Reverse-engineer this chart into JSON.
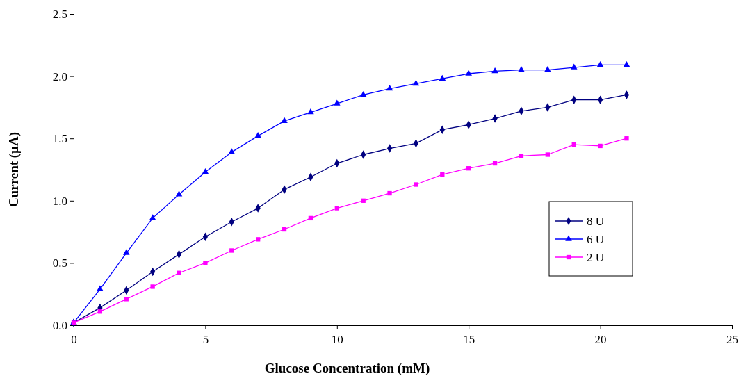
{
  "chart_data": {
    "type": "line",
    "xlabel": "Glucose Concentration (mM)",
    "ylabel": "Current (µA)",
    "x": [
      0,
      1,
      2,
      3,
      4,
      5,
      6,
      7,
      8,
      9,
      10,
      11,
      12,
      13,
      14,
      15,
      16,
      17,
      18,
      19,
      20,
      21
    ],
    "xlim": [
      0,
      25
    ],
    "xticks": [
      0,
      5,
      10,
      15,
      20,
      25
    ],
    "ylim": [
      0,
      2.5
    ],
    "yticks": [
      {
        "value": 0,
        "label": "0.0"
      },
      {
        "value": 0.5,
        "label": "0.5"
      },
      {
        "value": 1,
        "label": "1.0"
      },
      {
        "value": 1.5,
        "label": "1.5"
      },
      {
        "value": 2,
        "label": "2.0"
      },
      {
        "value": 2.5,
        "label": "2.5"
      }
    ],
    "legend": "right",
    "grid": false,
    "line_style": "solid",
    "series": [
      {
        "name": "8 U",
        "color": "#000080",
        "marker": "diamond",
        "values": [
          0.02,
          0.14,
          0.28,
          0.43,
          0.57,
          0.71,
          0.83,
          0.94,
          1.09,
          1.19,
          1.3,
          1.37,
          1.42,
          1.46,
          1.57,
          1.61,
          1.66,
          1.72,
          1.75,
          1.81,
          1.81,
          1.85
        ]
      },
      {
        "name": "6 U",
        "color": "#0000ff",
        "marker": "triangle",
        "values": [
          0.02,
          0.29,
          0.58,
          0.86,
          1.05,
          1.23,
          1.39,
          1.52,
          1.64,
          1.71,
          1.78,
          1.85,
          1.9,
          1.94,
          1.98,
          2.02,
          2.04,
          2.05,
          2.05,
          2.07,
          2.09,
          2.09
        ]
      },
      {
        "name": "2 U",
        "color": "#ff00ff",
        "marker": "square",
        "values": [
          0.02,
          0.11,
          0.21,
          0.31,
          0.42,
          0.5,
          0.6,
          0.69,
          0.77,
          0.86,
          0.94,
          1.0,
          1.06,
          1.13,
          1.21,
          1.26,
          1.3,
          1.36,
          1.37,
          1.45,
          1.44,
          1.5
        ]
      }
    ]
  }
}
